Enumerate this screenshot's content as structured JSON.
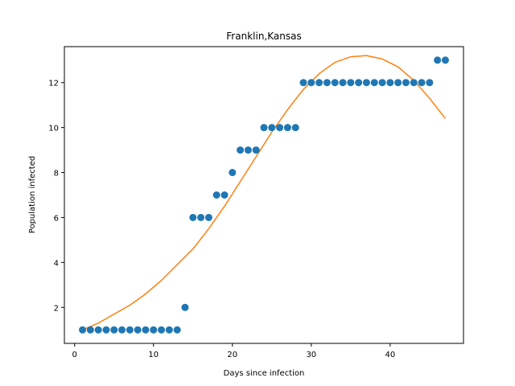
{
  "chart_data": {
    "type": "scatter",
    "title": "Franklin,Kansas",
    "xlabel": "Days since infection",
    "ylabel": "Population infected",
    "xlim": [
      -1.3,
      49.3
    ],
    "ylim": [
      0.4,
      13.6
    ],
    "xticks": [
      0,
      10,
      20,
      30,
      40
    ],
    "yticks": [
      2,
      4,
      6,
      8,
      10,
      12
    ],
    "grid": false,
    "series": [
      {
        "kind": "points",
        "color": "#1f77b4",
        "x": [
          1,
          2,
          3,
          4,
          5,
          6,
          7,
          8,
          9,
          10,
          11,
          12,
          13,
          14,
          15,
          16,
          17,
          18,
          19,
          20,
          21,
          22,
          23,
          24,
          25,
          26,
          27,
          28,
          29,
          30,
          31,
          32,
          33,
          34,
          35,
          36,
          37,
          38,
          39,
          40,
          41,
          42,
          43,
          44,
          45,
          46,
          47
        ],
        "y": [
          1,
          1,
          1,
          1,
          1,
          1,
          1,
          1,
          1,
          1,
          1,
          1,
          1,
          2,
          6,
          6,
          6,
          7,
          7,
          8,
          9,
          9,
          9,
          10,
          10,
          10,
          10,
          10,
          12,
          12,
          12,
          12,
          12,
          12,
          12,
          12,
          12,
          12,
          12,
          12,
          12,
          12,
          12,
          12,
          12,
          13,
          13
        ]
      },
      {
        "kind": "fit-line",
        "color": "#ff7f0e",
        "x": [
          1,
          3,
          5,
          7,
          9,
          11,
          13,
          15,
          17,
          19,
          21,
          23,
          25,
          27,
          29,
          31,
          33,
          35,
          37,
          39,
          41,
          43,
          45,
          47
        ],
        "y": [
          1.0,
          1.3,
          1.7,
          2.1,
          2.6,
          3.2,
          3.9,
          4.6,
          5.5,
          6.5,
          7.6,
          8.7,
          9.8,
          10.8,
          11.7,
          12.4,
          12.9,
          13.15,
          13.2,
          13.05,
          12.7,
          12.1,
          11.3,
          10.4
        ]
      }
    ]
  }
}
